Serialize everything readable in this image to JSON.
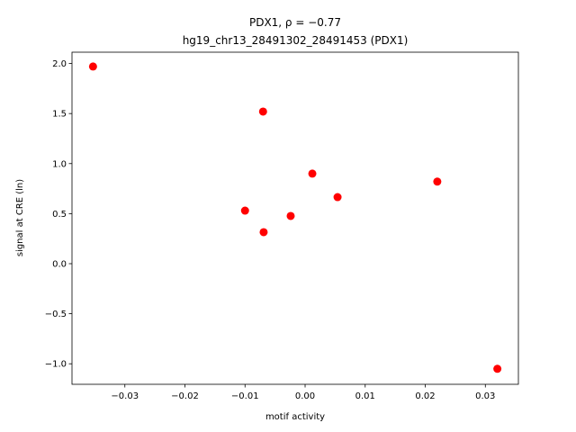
{
  "chart_data": {
    "type": "scatter",
    "title": "PDX1, ρ = −0.77",
    "subtitle": "hg19_chr13_28491302_28491453 (PDX1)",
    "x_label": "motif activity",
    "y_label": "signal at CRE (ln)",
    "color": "#ff0000",
    "x": [
      -0.0353,
      -0.007,
      0.0012,
      0.0054,
      0.022,
      -0.01,
      -0.0024,
      -0.0069,
      0.032
    ],
    "values": [
      1.97,
      1.52,
      0.9,
      0.665,
      0.82,
      0.53,
      0.477,
      0.315,
      -1.05
    ],
    "xlim": [
      -0.0388,
      0.0355
    ],
    "ylim": [
      -1.205,
      2.113
    ],
    "xticks": [
      {
        "value": -0.03,
        "label": "−0.03"
      },
      {
        "value": -0.02,
        "label": "−0.02"
      },
      {
        "value": -0.01,
        "label": "−0.01"
      },
      {
        "value": 0,
        "label": "0.00"
      },
      0.01,
      0.02,
      0.03
    ],
    "yticks": [
      {
        "value": -1,
        "label": "−1.0"
      },
      {
        "value": -0.5,
        "label": "−0.5"
      },
      {
        "value": 0,
        "label": "0.0"
      },
      0.5,
      {
        "value": 1,
        "label": "1.0"
      },
      1.5,
      {
        "value": 2,
        "label": "2.0"
      }
    ]
  }
}
